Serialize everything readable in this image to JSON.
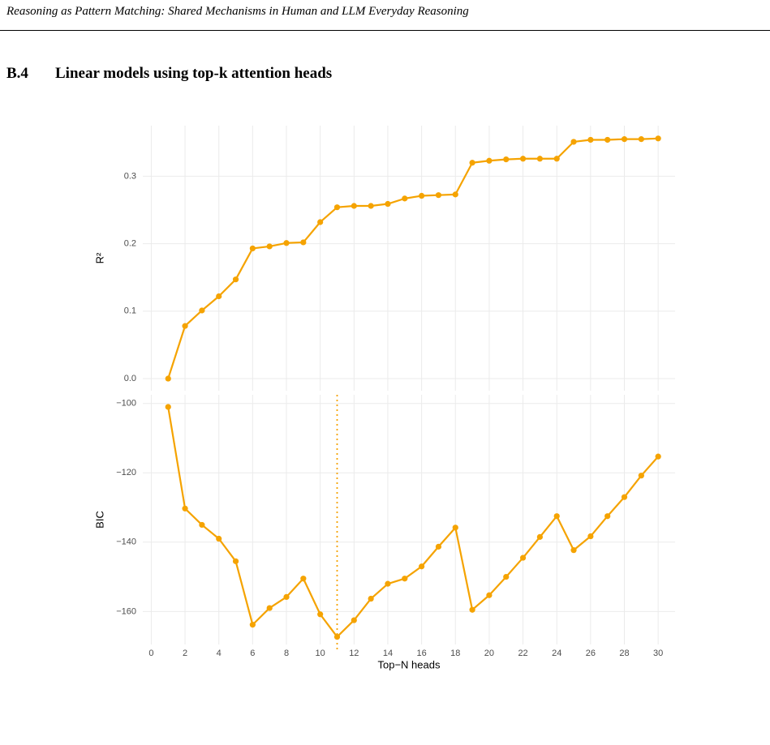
{
  "header": {
    "title": "Reasoning as Pattern Matching: Shared Mechanisms in Human and LLM Everyday Reasoning"
  },
  "section": {
    "number": "B.4",
    "title": "Linear models using top-k attention heads"
  },
  "chart_data": [
    {
      "type": "line",
      "ylabel": "R²",
      "color": "#f5a300",
      "grid": true,
      "x": [
        1,
        2,
        3,
        4,
        5,
        6,
        7,
        8,
        9,
        10,
        11,
        12,
        13,
        14,
        15,
        16,
        17,
        18,
        19,
        20,
        21,
        22,
        23,
        24,
        25,
        26,
        27,
        28,
        29,
        30
      ],
      "values": [
        0.0,
        0.078,
        0.101,
        0.122,
        0.147,
        0.193,
        0.196,
        0.201,
        0.202,
        0.232,
        0.254,
        0.256,
        0.256,
        0.259,
        0.267,
        0.271,
        0.272,
        0.273,
        0.32,
        0.323,
        0.325,
        0.326,
        0.326,
        0.326,
        0.351,
        0.354,
        0.354,
        0.355,
        0.355,
        0.356
      ],
      "xlim": [
        -0.5,
        31
      ],
      "xticks": [
        0,
        2,
        4,
        6,
        8,
        10,
        12,
        14,
        16,
        18,
        20,
        22,
        24,
        26,
        28,
        30
      ],
      "ylim": [
        -0.018,
        0.375
      ],
      "yticks": [
        {
          "value": 0,
          "label": "0.0"
        },
        0.1,
        0.2,
        0.3
      ]
    },
    {
      "type": "line",
      "ylabel": "BIC",
      "xlabel": "Top−N heads",
      "color": "#f5a300",
      "grid": true,
      "vline": 11,
      "x": [
        1,
        2,
        3,
        4,
        5,
        6,
        7,
        8,
        9,
        10,
        11,
        12,
        13,
        14,
        15,
        16,
        17,
        18,
        19,
        20,
        21,
        22,
        23,
        24,
        25,
        26,
        27,
        28,
        29,
        30
      ],
      "values": [
        -101,
        -130.3,
        -135,
        -139,
        -145.5,
        -163.8,
        -159,
        -155.8,
        -150.5,
        -160.8,
        -167.3,
        -162.5,
        -156.3,
        -152,
        -150.5,
        -147,
        -141.3,
        -135.8,
        -159.5,
        -155.3,
        -150,
        -144.5,
        -138.5,
        -132.5,
        -142.3,
        -138.3,
        -132.5,
        -127,
        -120.8,
        -115.3
      ],
      "xlim": [
        -0.5,
        31
      ],
      "xticks": [
        0,
        2,
        4,
        6,
        8,
        10,
        12,
        14,
        16,
        18,
        20,
        22,
        24,
        26,
        28,
        30
      ],
      "ylim": [
        -169.5,
        -97.5
      ],
      "yticks": [
        {
          "value": -160,
          "label": "−160"
        },
        {
          "value": -140,
          "label": "−140"
        },
        {
          "value": -120,
          "label": "−120"
        },
        {
          "value": -100,
          "label": "−100"
        }
      ]
    }
  ]
}
